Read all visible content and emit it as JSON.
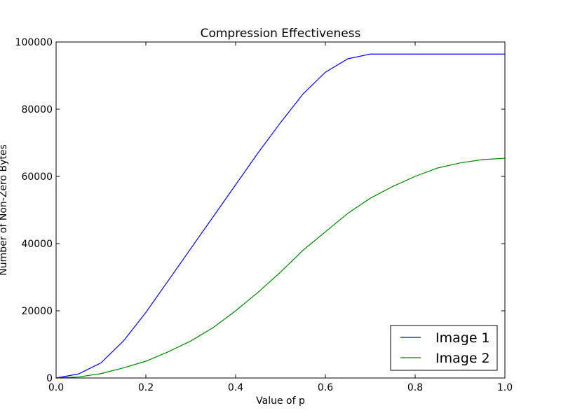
{
  "chart_data": {
    "type": "line",
    "title": "Compression Effectiveness",
    "xlabel": "Value of p",
    "ylabel": "Number of Non-Zero Bytes",
    "xlim": [
      0.0,
      1.0
    ],
    "ylim": [
      0,
      100000
    ],
    "x_ticks": [
      "0.0",
      "0.2",
      "0.4",
      "0.6",
      "0.8",
      "1.0"
    ],
    "y_ticks": [
      "0",
      "20000",
      "40000",
      "60000",
      "80000",
      "100000"
    ],
    "grid": false,
    "legend_position": "bottom-right",
    "x": [
      0.0,
      0.05,
      0.1,
      0.15,
      0.2,
      0.25,
      0.3,
      0.35,
      0.4,
      0.45,
      0.5,
      0.55,
      0.6,
      0.65,
      0.7,
      0.75,
      0.8,
      0.85,
      0.9,
      0.95,
      1.0
    ],
    "series": [
      {
        "name": "Image 1",
        "color": "#0000ff",
        "values": [
          0,
          1200,
          4500,
          11000,
          19500,
          29000,
          38500,
          48000,
          57500,
          67000,
          76000,
          84500,
          91000,
          95000,
          96400,
          96400,
          96400,
          96400,
          96400,
          96400,
          96400
        ]
      },
      {
        "name": "Image 2",
        "color": "#008000",
        "values": [
          0,
          300,
          1300,
          3000,
          5000,
          7800,
          11000,
          15000,
          20000,
          25500,
          31500,
          38000,
          43500,
          49000,
          53500,
          57000,
          60000,
          62500,
          64000,
          65000,
          65400
        ]
      }
    ]
  }
}
